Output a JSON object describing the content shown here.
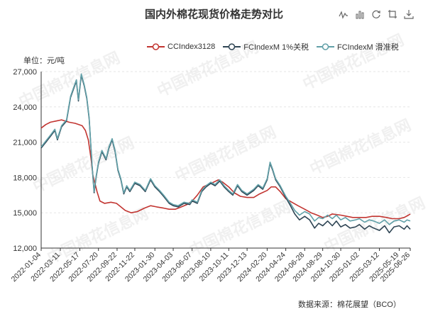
{
  "title": "国内外棉花现货价格走势对比",
  "unit_label": "单位：元/吨",
  "source": "数据来源：棉花展望（BCO）",
  "watermark": "中国棉花信息网",
  "toolbox": [
    {
      "name": "line-chart-icon"
    },
    {
      "name": "bar-chart-icon"
    },
    {
      "name": "restore-icon"
    },
    {
      "name": "crop-icon"
    },
    {
      "name": "download-icon"
    }
  ],
  "chart_data": {
    "type": "line",
    "ylim": [
      12000,
      27000
    ],
    "yticks": [
      12000,
      15000,
      18000,
      21000,
      24000,
      27000
    ],
    "xlim": [
      "2022-01-04",
      "2025-06-26"
    ],
    "xticks": [
      "2022-01-04",
      "2022-03-11",
      "2022-05-17",
      "2022-07-20",
      "2022-09-22",
      "2022-11-22",
      "2023-01-30",
      "2023-04-03",
      "2023-06-07",
      "2023-08-10",
      "2023-10-11",
      "2023-12-13",
      "2024-02-20",
      "2024-04-24",
      "2024-06-28",
      "2024-08-29",
      "2024-10-30",
      "2025-01-02",
      "2025-03-12",
      "2025-05-19",
      "2025-06-26"
    ],
    "legend_position": "top-right",
    "series": [
      {
        "name": "CCIndex3128",
        "color": "#c23531",
        "points": [
          [
            "2022-01-04",
            22200
          ],
          [
            "2022-01-20",
            22500
          ],
          [
            "2022-02-05",
            22700
          ],
          [
            "2022-02-25",
            22800
          ],
          [
            "2022-03-15",
            22900
          ],
          [
            "2022-04-10",
            22700
          ],
          [
            "2022-05-01",
            22600
          ],
          [
            "2022-05-25",
            22400
          ],
          [
            "2022-06-05",
            22000
          ],
          [
            "2022-06-15",
            21200
          ],
          [
            "2022-06-25",
            19500
          ],
          [
            "2022-07-01",
            18200
          ],
          [
            "2022-07-08",
            17500
          ],
          [
            "2022-07-15",
            16800
          ],
          [
            "2022-07-25",
            16000
          ],
          [
            "2022-08-10",
            15800
          ],
          [
            "2022-09-01",
            15900
          ],
          [
            "2022-09-20",
            15800
          ],
          [
            "2022-10-05",
            15500
          ],
          [
            "2022-10-20",
            15200
          ],
          [
            "2022-11-10",
            15000
          ],
          [
            "2022-12-01",
            15100
          ],
          [
            "2022-12-25",
            15400
          ],
          [
            "2023-01-15",
            15600
          ],
          [
            "2023-02-05",
            15500
          ],
          [
            "2023-03-01",
            15400
          ],
          [
            "2023-03-20",
            15300
          ],
          [
            "2023-04-10",
            15300
          ],
          [
            "2023-05-01",
            15500
          ],
          [
            "2023-05-20",
            15700
          ],
          [
            "2023-06-07",
            16000
          ],
          [
            "2023-06-25",
            16500
          ],
          [
            "2023-07-15",
            17200
          ],
          [
            "2023-08-01",
            17400
          ],
          [
            "2023-08-20",
            17600
          ],
          [
            "2023-09-05",
            17800
          ],
          [
            "2023-09-20",
            17600
          ],
          [
            "2023-10-11",
            17200
          ],
          [
            "2023-10-30",
            16700
          ],
          [
            "2023-11-20",
            16400
          ],
          [
            "2023-12-13",
            16300
          ],
          [
            "2024-01-05",
            16300
          ],
          [
            "2024-01-25",
            16600
          ],
          [
            "2024-02-20",
            16900
          ],
          [
            "2024-03-05",
            17200
          ],
          [
            "2024-03-20",
            17200
          ],
          [
            "2024-04-05",
            16800
          ],
          [
            "2024-04-24",
            16200
          ],
          [
            "2024-05-15",
            15900
          ],
          [
            "2024-06-05",
            15600
          ],
          [
            "2024-06-28",
            15300
          ],
          [
            "2024-07-20",
            15000
          ],
          [
            "2024-08-10",
            14800
          ],
          [
            "2024-08-29",
            14600
          ],
          [
            "2024-09-15",
            14700
          ],
          [
            "2024-10-01",
            14900
          ],
          [
            "2024-10-30",
            14800
          ],
          [
            "2024-11-20",
            14700
          ],
          [
            "2024-12-10",
            14600
          ],
          [
            "2025-01-02",
            14600
          ],
          [
            "2025-01-25",
            14600
          ],
          [
            "2025-02-15",
            14700
          ],
          [
            "2025-03-12",
            14700
          ],
          [
            "2025-04-05",
            14600
          ],
          [
            "2025-04-25",
            14500
          ],
          [
            "2025-05-19",
            14500
          ],
          [
            "2025-06-05",
            14600
          ],
          [
            "2025-06-20",
            14800
          ],
          [
            "2025-06-26",
            14900
          ]
        ]
      },
      {
        "name": "FCIndexM 1%关税",
        "color": "#2f4554",
        "points": [
          [
            "2022-01-04",
            20500
          ],
          [
            "2022-01-20",
            21000
          ],
          [
            "2022-02-05",
            21500
          ],
          [
            "2022-02-20",
            22000
          ],
          [
            "2022-03-01",
            21200
          ],
          [
            "2022-03-15",
            22300
          ],
          [
            "2022-04-01",
            22800
          ],
          [
            "2022-04-15",
            24800
          ],
          [
            "2022-04-25",
            25500
          ],
          [
            "2022-05-05",
            26200
          ],
          [
            "2022-05-12",
            24500
          ],
          [
            "2022-05-22",
            26700
          ],
          [
            "2022-06-01",
            25800
          ],
          [
            "2022-06-10",
            24700
          ],
          [
            "2022-06-18",
            23000
          ],
          [
            "2022-06-28",
            19000
          ],
          [
            "2022-07-05",
            16700
          ],
          [
            "2022-07-12",
            18000
          ],
          [
            "2022-07-20",
            19200
          ],
          [
            "2022-08-01",
            20200
          ],
          [
            "2022-08-15",
            19500
          ],
          [
            "2022-08-25",
            20500
          ],
          [
            "2022-09-05",
            21200
          ],
          [
            "2022-09-15",
            20200
          ],
          [
            "2022-09-25",
            18600
          ],
          [
            "2022-10-05",
            17800
          ],
          [
            "2022-10-15",
            16600
          ],
          [
            "2022-10-25",
            17200
          ],
          [
            "2022-11-05",
            16800
          ],
          [
            "2022-11-22",
            17500
          ],
          [
            "2022-12-10",
            17300
          ],
          [
            "2022-12-28",
            16800
          ],
          [
            "2023-01-15",
            17800
          ],
          [
            "2023-01-30",
            17200
          ],
          [
            "2023-02-15",
            16800
          ],
          [
            "2023-03-01",
            16400
          ],
          [
            "2023-03-20",
            15800
          ],
          [
            "2023-04-03",
            15600
          ],
          [
            "2023-04-20",
            15500
          ],
          [
            "2023-05-10",
            15800
          ],
          [
            "2023-05-30",
            15700
          ],
          [
            "2023-06-07",
            16000
          ],
          [
            "2023-06-25",
            15800
          ],
          [
            "2023-07-10",
            16800
          ],
          [
            "2023-07-25",
            17200
          ],
          [
            "2023-08-10",
            17500
          ],
          [
            "2023-08-25",
            17300
          ],
          [
            "2023-09-10",
            17700
          ],
          [
            "2023-09-25",
            17200
          ],
          [
            "2023-10-11",
            16800
          ],
          [
            "2023-10-25",
            16500
          ],
          [
            "2023-11-10",
            17300
          ],
          [
            "2023-11-25",
            16800
          ],
          [
            "2023-12-13",
            16500
          ],
          [
            "2024-01-05",
            16900
          ],
          [
            "2024-01-20",
            17300
          ],
          [
            "2024-02-05",
            17000
          ],
          [
            "2024-02-20",
            17800
          ],
          [
            "2024-03-01",
            19200
          ],
          [
            "2024-03-10",
            18600
          ],
          [
            "2024-03-20",
            17800
          ],
          [
            "2024-04-05",
            17200
          ],
          [
            "2024-04-24",
            16300
          ],
          [
            "2024-05-10",
            15600
          ],
          [
            "2024-05-25",
            14900
          ],
          [
            "2024-06-10",
            14400
          ],
          [
            "2024-06-28",
            14700
          ],
          [
            "2024-07-15",
            14400
          ],
          [
            "2024-08-01",
            13700
          ],
          [
            "2024-08-15",
            14100
          ],
          [
            "2024-08-29",
            13900
          ],
          [
            "2024-09-15",
            14300
          ],
          [
            "2024-10-01",
            13900
          ],
          [
            "2024-10-15",
            14300
          ],
          [
            "2024-10-30",
            13800
          ],
          [
            "2024-11-15",
            14000
          ],
          [
            "2024-12-01",
            13700
          ],
          [
            "2024-12-20",
            13800
          ],
          [
            "2025-01-02",
            14000
          ],
          [
            "2025-01-20",
            13600
          ],
          [
            "2025-02-05",
            13900
          ],
          [
            "2025-02-20",
            13700
          ],
          [
            "2025-03-12",
            13500
          ],
          [
            "2025-03-30",
            13900
          ],
          [
            "2025-04-15",
            13300
          ],
          [
            "2025-05-01",
            13800
          ],
          [
            "2025-05-19",
            13900
          ],
          [
            "2025-06-05",
            13600
          ],
          [
            "2025-06-15",
            13900
          ],
          [
            "2025-06-26",
            13600
          ]
        ]
      },
      {
        "name": "FCIndexM 滑准税",
        "color": "#61a0a8",
        "points": [
          [
            "2022-01-04",
            20600
          ],
          [
            "2022-01-20",
            21100
          ],
          [
            "2022-02-05",
            21600
          ],
          [
            "2022-02-20",
            22100
          ],
          [
            "2022-03-01",
            21300
          ],
          [
            "2022-03-15",
            22400
          ],
          [
            "2022-04-01",
            22900
          ],
          [
            "2022-04-15",
            24900
          ],
          [
            "2022-04-25",
            25600
          ],
          [
            "2022-05-05",
            26300
          ],
          [
            "2022-05-12",
            24600
          ],
          [
            "2022-05-22",
            26800
          ],
          [
            "2022-06-01",
            25900
          ],
          [
            "2022-06-10",
            24800
          ],
          [
            "2022-06-18",
            23100
          ],
          [
            "2022-06-28",
            19100
          ],
          [
            "2022-07-05",
            16800
          ],
          [
            "2022-07-12",
            18100
          ],
          [
            "2022-07-20",
            19300
          ],
          [
            "2022-08-01",
            20300
          ],
          [
            "2022-08-15",
            19600
          ],
          [
            "2022-08-25",
            20600
          ],
          [
            "2022-09-05",
            21300
          ],
          [
            "2022-09-15",
            20300
          ],
          [
            "2022-09-25",
            18700
          ],
          [
            "2022-10-05",
            17900
          ],
          [
            "2022-10-15",
            16700
          ],
          [
            "2022-10-25",
            17300
          ],
          [
            "2022-11-05",
            16900
          ],
          [
            "2022-11-22",
            17600
          ],
          [
            "2022-12-10",
            17400
          ],
          [
            "2022-12-28",
            16900
          ],
          [
            "2023-01-15",
            17900
          ],
          [
            "2023-01-30",
            17300
          ],
          [
            "2023-02-15",
            16900
          ],
          [
            "2023-03-01",
            16500
          ],
          [
            "2023-03-20",
            15900
          ],
          [
            "2023-04-03",
            15700
          ],
          [
            "2023-04-20",
            15600
          ],
          [
            "2023-05-10",
            15900
          ],
          [
            "2023-05-30",
            15800
          ],
          [
            "2023-06-07",
            16100
          ],
          [
            "2023-06-25",
            15900
          ],
          [
            "2023-07-10",
            16900
          ],
          [
            "2023-07-25",
            17300
          ],
          [
            "2023-08-10",
            17600
          ],
          [
            "2023-08-25",
            17400
          ],
          [
            "2023-09-10",
            17800
          ],
          [
            "2023-09-25",
            17300
          ],
          [
            "2023-10-11",
            16900
          ],
          [
            "2023-10-25",
            16600
          ],
          [
            "2023-11-10",
            17400
          ],
          [
            "2023-11-25",
            16900
          ],
          [
            "2023-12-13",
            16600
          ],
          [
            "2024-01-05",
            17000
          ],
          [
            "2024-01-20",
            17400
          ],
          [
            "2024-02-05",
            17100
          ],
          [
            "2024-02-20",
            17900
          ],
          [
            "2024-03-01",
            19300
          ],
          [
            "2024-03-10",
            18700
          ],
          [
            "2024-03-20",
            17900
          ],
          [
            "2024-04-05",
            17300
          ],
          [
            "2024-04-24",
            16400
          ],
          [
            "2024-05-10",
            15800
          ],
          [
            "2024-05-25",
            15200
          ],
          [
            "2024-06-10",
            14800
          ],
          [
            "2024-06-28",
            15100
          ],
          [
            "2024-07-15",
            14900
          ],
          [
            "2024-08-01",
            14300
          ],
          [
            "2024-08-15",
            14600
          ],
          [
            "2024-08-29",
            14500
          ],
          [
            "2024-09-15",
            14800
          ],
          [
            "2024-10-01",
            14500
          ],
          [
            "2024-10-15",
            14800
          ],
          [
            "2024-10-30",
            14400
          ],
          [
            "2024-11-15",
            14600
          ],
          [
            "2024-12-01",
            14300
          ],
          [
            "2024-12-20",
            14400
          ],
          [
            "2025-01-02",
            14500
          ],
          [
            "2025-01-20",
            14200
          ],
          [
            "2025-02-05",
            14400
          ],
          [
            "2025-02-20",
            14300
          ],
          [
            "2025-03-12",
            14100
          ],
          [
            "2025-03-30",
            14400
          ],
          [
            "2025-04-15",
            14000
          ],
          [
            "2025-05-01",
            14300
          ],
          [
            "2025-05-19",
            14400
          ],
          [
            "2025-06-05",
            14200
          ],
          [
            "2025-06-15",
            14400
          ],
          [
            "2025-06-26",
            14300
          ]
        ]
      }
    ]
  }
}
